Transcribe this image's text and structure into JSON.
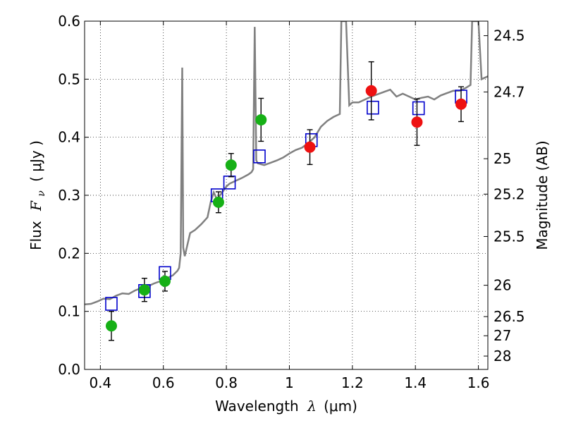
{
  "chart_data": {
    "type": "scatter",
    "xlabel_text": "Wavelength",
    "xlabel_symbol": "λ",
    "xlabel_unit": "(μm)",
    "ylabel_text": "Flux",
    "ylabel_symbol": "F",
    "ylabel_subscript": "ν",
    "ylabel_unit": "( μJy )",
    "y2label": "Magnitude (AB)",
    "xlim": [
      0.35,
      1.63
    ],
    "ylim": [
      0.0,
      0.6
    ],
    "grid": true,
    "x_ticks": [
      0.4,
      0.6,
      0.8,
      1.0,
      1.2,
      1.4,
      1.6
    ],
    "x_tick_labels": [
      "0.4",
      "0.6",
      "0.8",
      "1",
      "1.2",
      "1.4",
      "1.6"
    ],
    "y_ticks": [
      0.0,
      0.1,
      0.2,
      0.3,
      0.4,
      0.5,
      0.6
    ],
    "y_tick_labels": [
      "0.0",
      "0.1",
      "0.2",
      "0.3",
      "0.4",
      "0.5",
      "0.6"
    ],
    "y2_ticks": [
      {
        "label": "24.5",
        "flux": 0.575
      },
      {
        "label": "24.7",
        "flux": 0.478
      },
      {
        "label": "25",
        "flux": 0.363
      },
      {
        "label": "25.2",
        "flux": 0.302
      },
      {
        "label": "25.5",
        "flux": 0.229
      },
      {
        "label": "26",
        "flux": 0.145
      },
      {
        "label": "26.5",
        "flux": 0.091
      },
      {
        "label": "27",
        "flux": 0.058
      },
      {
        "label": "28",
        "flux": 0.023
      }
    ],
    "colors": {
      "sed_line": "#808080",
      "model_box": "#0000cc",
      "optical": "#16b016",
      "nir": "#ee1111",
      "errorbar": "#000000"
    },
    "series": [
      {
        "marker": "line",
        "points": [
          [
            0.35,
            0.112
          ],
          [
            0.37,
            0.113
          ],
          [
            0.39,
            0.117
          ],
          [
            0.41,
            0.122
          ],
          [
            0.43,
            0.121
          ],
          [
            0.45,
            0.127
          ],
          [
            0.47,
            0.131
          ],
          [
            0.49,
            0.13
          ],
          [
            0.51,
            0.136
          ],
          [
            0.53,
            0.14
          ],
          [
            0.55,
            0.143
          ],
          [
            0.57,
            0.148
          ],
          [
            0.59,
            0.152
          ],
          [
            0.61,
            0.157
          ],
          [
            0.63,
            0.162
          ],
          [
            0.645,
            0.17
          ],
          [
            0.65,
            0.175
          ],
          [
            0.655,
            0.2
          ],
          [
            0.66,
            0.52
          ],
          [
            0.663,
            0.21
          ],
          [
            0.668,
            0.195
          ],
          [
            0.685,
            0.235
          ],
          [
            0.7,
            0.24
          ],
          [
            0.72,
            0.25
          ],
          [
            0.74,
            0.262
          ],
          [
            0.75,
            0.288
          ],
          [
            0.76,
            0.305
          ],
          [
            0.77,
            0.293
          ],
          [
            0.78,
            0.3
          ],
          [
            0.8,
            0.315
          ],
          [
            0.81,
            0.32
          ],
          [
            0.83,
            0.325
          ],
          [
            0.85,
            0.33
          ],
          [
            0.87,
            0.336
          ],
          [
            0.88,
            0.34
          ],
          [
            0.885,
            0.345
          ],
          [
            0.89,
            0.59
          ],
          [
            0.895,
            0.36
          ],
          [
            0.9,
            0.355
          ],
          [
            0.92,
            0.352
          ],
          [
            0.94,
            0.356
          ],
          [
            0.96,
            0.36
          ],
          [
            0.98,
            0.365
          ],
          [
            1.0,
            0.372
          ],
          [
            1.02,
            0.378
          ],
          [
            1.04,
            0.382
          ],
          [
            1.06,
            0.39
          ],
          [
            1.08,
            0.4
          ],
          [
            1.1,
            0.418
          ],
          [
            1.12,
            0.428
          ],
          [
            1.14,
            0.435
          ],
          [
            1.16,
            0.44
          ],
          [
            1.165,
            0.6
          ],
          [
            1.18,
            0.6
          ],
          [
            1.19,
            0.455
          ],
          [
            1.2,
            0.46
          ],
          [
            1.22,
            0.46
          ],
          [
            1.24,
            0.465
          ],
          [
            1.26,
            0.47
          ],
          [
            1.28,
            0.474
          ],
          [
            1.3,
            0.478
          ],
          [
            1.32,
            0.482
          ],
          [
            1.34,
            0.47
          ],
          [
            1.36,
            0.475
          ],
          [
            1.38,
            0.47
          ],
          [
            1.4,
            0.465
          ],
          [
            1.42,
            0.468
          ],
          [
            1.44,
            0.47
          ],
          [
            1.46,
            0.465
          ],
          [
            1.48,
            0.472
          ],
          [
            1.5,
            0.476
          ],
          [
            1.52,
            0.48
          ],
          [
            1.54,
            0.48
          ],
          [
            1.56,
            0.485
          ],
          [
            1.575,
            0.49
          ],
          [
            1.58,
            0.6
          ],
          [
            1.6,
            0.6
          ],
          [
            1.61,
            0.5
          ],
          [
            1.63,
            0.505
          ]
        ]
      },
      {
        "marker": "open-square",
        "points": [
          [
            0.435,
            0.113
          ],
          [
            0.54,
            0.135
          ],
          [
            0.605,
            0.166
          ],
          [
            0.77,
            0.3
          ],
          [
            0.81,
            0.322
          ],
          [
            0.905,
            0.367
          ],
          [
            1.07,
            0.395
          ],
          [
            1.265,
            0.451
          ],
          [
            1.41,
            0.45
          ],
          [
            1.545,
            0.47
          ]
        ]
      },
      {
        "marker": "filled-circle",
        "group": "optical",
        "points": [
          {
            "x": 0.435,
            "y": 0.075,
            "yerr": 0.025
          },
          {
            "x": 0.54,
            "y": 0.137,
            "yerr": 0.02
          },
          {
            "x": 0.605,
            "y": 0.152,
            "yerr": 0.017
          },
          {
            "x": 0.775,
            "y": 0.288,
            "yerr": 0.018
          },
          {
            "x": 0.815,
            "y": 0.352,
            "yerr": 0.02
          },
          {
            "x": 0.91,
            "y": 0.43,
            "yerr": 0.037
          }
        ]
      },
      {
        "marker": "filled-circle",
        "group": "nir",
        "points": [
          {
            "x": 1.065,
            "y": 0.383,
            "yerr": 0.03
          },
          {
            "x": 1.26,
            "y": 0.48,
            "yerr": 0.05
          },
          {
            "x": 1.405,
            "y": 0.426,
            "yerr": 0.04
          },
          {
            "x": 1.545,
            "y": 0.457,
            "yerr": 0.03
          }
        ]
      }
    ]
  }
}
